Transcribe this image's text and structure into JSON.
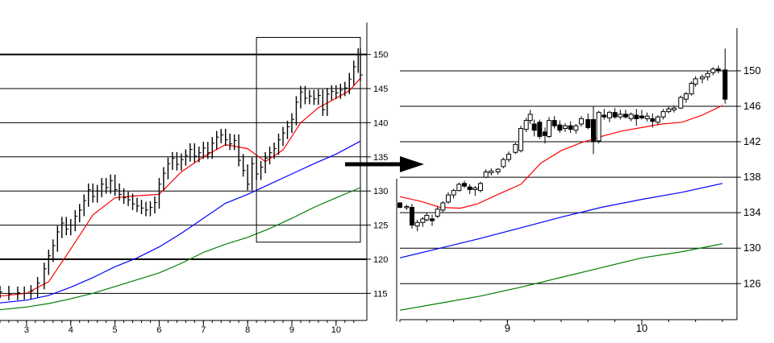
{
  "chart_data": [
    {
      "type": "candlestick",
      "name": "",
      "x_ticks": [
        "3",
        "4",
        "5",
        "6",
        "7",
        "8",
        "9",
        "10"
      ],
      "x_tick_values": [
        3,
        4,
        5,
        6,
        7,
        8,
        9,
        10
      ],
      "xlim": [
        2.4,
        10.55
      ],
      "y_ticks": [
        "115",
        "120",
        "125",
        "130",
        "135",
        "140",
        "145",
        "150"
      ],
      "y_tick_values": [
        115,
        120,
        125,
        130,
        135,
        140,
        145,
        150
      ],
      "ylim": [
        111.5,
        153.5
      ],
      "grid": true,
      "zoom_box": {
        "x": [
          8.2,
          10.55
        ],
        "y": [
          122.5,
          152.5
        ]
      },
      "close": [
        [
          2.4,
          115.2
        ],
        [
          2.6,
          114.9
        ],
        [
          2.8,
          115.1
        ],
        [
          2.95,
          115.0
        ],
        [
          3.1,
          115.3
        ],
        [
          3.25,
          116.5
        ],
        [
          3.4,
          118.6
        ],
        [
          3.5,
          120.5
        ],
        [
          3.6,
          122.0
        ],
        [
          3.7,
          124.0
        ],
        [
          3.8,
          125.3
        ],
        [
          3.9,
          124.4
        ],
        [
          4.0,
          125.0
        ],
        [
          4.1,
          126.3
        ],
        [
          4.2,
          127.2
        ],
        [
          4.3,
          128.6
        ],
        [
          4.4,
          130.2
        ],
        [
          4.5,
          129.2
        ],
        [
          4.6,
          130.0
        ],
        [
          4.7,
          131.0
        ],
        [
          4.8,
          130.5
        ],
        [
          4.9,
          131.5
        ],
        [
          5.0,
          130.2
        ],
        [
          5.1,
          129.5
        ],
        [
          5.2,
          129.0
        ],
        [
          5.3,
          128.7
        ],
        [
          5.4,
          128.1
        ],
        [
          5.5,
          127.8
        ],
        [
          5.6,
          127.5
        ],
        [
          5.7,
          127.2
        ],
        [
          5.8,
          127.6
        ],
        [
          5.9,
          128.3
        ],
        [
          6.0,
          131.0
        ],
        [
          6.1,
          132.6
        ],
        [
          6.2,
          134.0
        ],
        [
          6.3,
          134.8
        ],
        [
          6.4,
          133.9
        ],
        [
          6.5,
          134.6
        ],
        [
          6.6,
          135.2
        ],
        [
          6.7,
          136.1
        ],
        [
          6.8,
          135.1
        ],
        [
          6.9,
          135.6
        ],
        [
          7.0,
          136.3
        ],
        [
          7.1,
          135.6
        ],
        [
          7.2,
          137.0
        ],
        [
          7.3,
          137.9
        ],
        [
          7.4,
          138.2
        ],
        [
          7.5,
          137.5
        ],
        [
          7.6,
          136.9
        ],
        [
          7.7,
          137.4
        ],
        [
          7.8,
          134.5
        ],
        [
          7.9,
          133.0
        ],
        [
          8.0,
          131.0
        ],
        [
          8.1,
          134.0
        ],
        [
          8.2,
          132.5
        ],
        [
          8.3,
          133.5
        ],
        [
          8.4,
          134.8
        ],
        [
          8.5,
          135.6
        ],
        [
          8.6,
          136.2
        ],
        [
          8.7,
          137.5
        ],
        [
          8.8,
          138.5
        ],
        [
          8.9,
          139.4
        ],
        [
          9.0,
          140.5
        ],
        [
          9.1,
          143.0
        ],
        [
          9.2,
          144.5
        ],
        [
          9.3,
          143.6
        ],
        [
          9.4,
          143.9
        ],
        [
          9.5,
          143.5
        ],
        [
          9.6,
          144.0
        ],
        [
          9.7,
          141.9
        ],
        [
          9.8,
          144.2
        ],
        [
          9.9,
          144.6
        ],
        [
          10.0,
          144.4
        ],
        [
          10.1,
          144.8
        ],
        [
          10.2,
          145.1
        ],
        [
          10.3,
          146.4
        ],
        [
          10.4,
          148.2
        ],
        [
          10.5,
          150.0
        ],
        [
          10.55,
          147.0
        ]
      ],
      "series": [
        {
          "name": "",
          "color": "#ff0000",
          "values": [
            [
              2.4,
              114.6
            ],
            [
              3.0,
              115.0
            ],
            [
              3.5,
              116.7
            ],
            [
              4.0,
              121.5
            ],
            [
              4.5,
              126.5
            ],
            [
              5.0,
              129.0
            ],
            [
              5.5,
              129.3
            ],
            [
              6.0,
              129.5
            ],
            [
              6.5,
              132.8
            ],
            [
              7.0,
              135.0
            ],
            [
              7.5,
              136.8
            ],
            [
              8.0,
              136.2
            ],
            [
              8.4,
              134.3
            ],
            [
              8.8,
              136.0
            ],
            [
              9.2,
              140.0
            ],
            [
              9.6,
              142.2
            ],
            [
              10.0,
              143.6
            ],
            [
              10.3,
              144.7
            ],
            [
              10.55,
              146.5
            ]
          ]
        },
        {
          "name": "",
          "color": "#0000ff",
          "values": [
            [
              2.4,
              113.6
            ],
            [
              3.0,
              114.0
            ],
            [
              3.5,
              114.7
            ],
            [
              4.0,
              115.9
            ],
            [
              4.5,
              117.3
            ],
            [
              5.0,
              118.9
            ],
            [
              5.5,
              120.2
            ],
            [
              6.0,
              121.8
            ],
            [
              6.5,
              123.8
            ],
            [
              7.0,
              126.0
            ],
            [
              7.5,
              128.2
            ],
            [
              8.0,
              129.5
            ],
            [
              8.5,
              131.0
            ],
            [
              9.0,
              132.5
            ],
            [
              9.5,
              134.0
            ],
            [
              10.0,
              135.4
            ],
            [
              10.55,
              137.3
            ]
          ]
        },
        {
          "name": "",
          "color": "#008000",
          "values": [
            [
              2.4,
              112.6
            ],
            [
              3.0,
              113.0
            ],
            [
              3.5,
              113.5
            ],
            [
              4.0,
              114.2
            ],
            [
              4.5,
              115.0
            ],
            [
              5.0,
              116.0
            ],
            [
              5.5,
              117.0
            ],
            [
              6.0,
              118.0
            ],
            [
              6.5,
              119.4
            ],
            [
              7.0,
              121.0
            ],
            [
              7.5,
              122.2
            ],
            [
              8.0,
              123.2
            ],
            [
              8.5,
              124.5
            ],
            [
              9.0,
              126.0
            ],
            [
              9.5,
              127.6
            ],
            [
              10.0,
              129.0
            ],
            [
              10.55,
              130.5
            ]
          ]
        }
      ]
    },
    {
      "type": "candlestick",
      "name": "",
      "x_ticks": [
        "9",
        "10"
      ],
      "x_tick_values": [
        9,
        10
      ],
      "xlim": [
        8.2,
        10.66
      ],
      "y_ticks": [
        "126",
        "130",
        "134",
        "138",
        "142",
        "146",
        "150"
      ],
      "y_tick_values": [
        126,
        130,
        134,
        138,
        142,
        146,
        150
      ],
      "ylim": [
        122.3,
        153.9
      ],
      "grid": true,
      "ohlc": [
        [
          8.2,
          135.1,
          135.2,
          134.5,
          134.6
        ],
        [
          8.25,
          134.6,
          134.9,
          134.3,
          134.7
        ],
        [
          8.29,
          134.6,
          135.0,
          132.2,
          132.6
        ],
        [
          8.33,
          132.5,
          133.2,
          131.9,
          132.9
        ],
        [
          8.37,
          132.9,
          133.5,
          132.4,
          133.3
        ],
        [
          8.4,
          133.2,
          134.0,
          133.0,
          133.7
        ],
        [
          8.44,
          133.3,
          133.8,
          132.5,
          133.1
        ],
        [
          8.48,
          133.6,
          134.7,
          133.4,
          134.4
        ],
        [
          8.52,
          134.3,
          135.3,
          134.0,
          135.1
        ],
        [
          8.56,
          135.2,
          136.3,
          135.0,
          136.0
        ],
        [
          8.6,
          136.0,
          136.7,
          135.6,
          136.5
        ],
        [
          8.64,
          136.5,
          137.4,
          136.4,
          137.2
        ],
        [
          8.68,
          137.3,
          137.6,
          136.8,
          137.0
        ],
        [
          8.72,
          136.9,
          137.2,
          136.1,
          136.6
        ],
        [
          8.76,
          136.6,
          137.0,
          135.9,
          136.8
        ],
        [
          8.8,
          136.5,
          137.5,
          136.3,
          137.3
        ],
        [
          8.84,
          138.0,
          138.9,
          137.9,
          138.6
        ],
        [
          8.88,
          138.5,
          139.0,
          138.2,
          138.7
        ],
        [
          8.93,
          138.6,
          139.0,
          138.3,
          138.9
        ],
        [
          8.97,
          139.2,
          140.2,
          139.0,
          140.0
        ],
        [
          9.01,
          140.0,
          140.9,
          139.7,
          140.6
        ],
        [
          9.06,
          140.8,
          141.9,
          140.6,
          141.7
        ],
        [
          9.1,
          141.0,
          143.8,
          140.8,
          143.5
        ],
        [
          9.14,
          143.4,
          144.7,
          143.1,
          144.4
        ],
        [
          9.17,
          144.4,
          145.6,
          144.0,
          145.1
        ],
        [
          9.2,
          144.0,
          144.5,
          142.6,
          143.3
        ],
        [
          9.24,
          144.2,
          144.5,
          142.3,
          142.6
        ],
        [
          9.28,
          143.1,
          143.6,
          141.8,
          142.7
        ],
        [
          9.31,
          142.6,
          144.8,
          142.4,
          144.4
        ],
        [
          9.35,
          144.4,
          144.9,
          143.5,
          143.8
        ],
        [
          9.39,
          143.9,
          144.4,
          143.0,
          143.3
        ],
        [
          9.43,
          143.5,
          144.1,
          143.1,
          143.8
        ],
        [
          9.47,
          143.8,
          144.3,
          143.0,
          143.4
        ],
        [
          9.51,
          143.3,
          144.0,
          142.9,
          143.8
        ],
        [
          9.55,
          144.0,
          144.9,
          143.7,
          144.6
        ],
        [
          9.6,
          144.5,
          145.2,
          143.4,
          143.6
        ],
        [
          9.64,
          144.5,
          146.0,
          140.6,
          142.0
        ],
        [
          9.68,
          142.1,
          145.5,
          141.8,
          145.3
        ],
        [
          9.72,
          145.0,
          145.7,
          144.5,
          144.8
        ],
        [
          9.76,
          144.7,
          145.5,
          144.2,
          145.3
        ],
        [
          9.8,
          145.3,
          145.8,
          144.6,
          144.8
        ],
        [
          9.84,
          144.8,
          145.6,
          144.5,
          145.1
        ],
        [
          9.88,
          145.1,
          145.6,
          144.6,
          144.8
        ],
        [
          9.92,
          144.6,
          145.3,
          144.3,
          145.1
        ],
        [
          9.96,
          145.0,
          145.7,
          143.8,
          144.6
        ],
        [
          10.0,
          144.9,
          145.6,
          144.5,
          144.7
        ],
        [
          10.04,
          144.6,
          145.3,
          144.3,
          144.9
        ],
        [
          10.08,
          144.6,
          145.2,
          143.6,
          144.3
        ],
        [
          10.12,
          144.2,
          145.0,
          143.9,
          144.8
        ],
        [
          10.16,
          144.8,
          145.7,
          144.5,
          145.4
        ],
        [
          10.2,
          145.4,
          146.0,
          145.2,
          145.7
        ],
        [
          10.24,
          145.6,
          146.1,
          145.3,
          145.8
        ],
        [
          10.29,
          145.8,
          147.2,
          145.7,
          147.0
        ],
        [
          10.33,
          146.8,
          147.6,
          146.4,
          147.4
        ],
        [
          10.37,
          147.4,
          148.8,
          147.2,
          148.6
        ],
        [
          10.4,
          148.5,
          149.4,
          148.2,
          149.1
        ],
        [
          10.45,
          149.1,
          149.6,
          148.6,
          149.3
        ],
        [
          10.49,
          149.3,
          150.0,
          148.9,
          149.7
        ],
        [
          10.53,
          149.8,
          150.4,
          149.5,
          150.2
        ],
        [
          10.57,
          150.2,
          150.6,
          149.7,
          150.0
        ],
        [
          10.62,
          150.1,
          152.5,
          146.3,
          146.8
        ]
      ],
      "series": [
        {
          "name": "",
          "color": "#ff0000",
          "values": [
            [
              8.2,
              135.8
            ],
            [
              8.35,
              135.3
            ],
            [
              8.5,
              134.6
            ],
            [
              8.65,
              134.5
            ],
            [
              8.78,
              135.0
            ],
            [
              8.95,
              136.2
            ],
            [
              9.1,
              137.2
            ],
            [
              9.25,
              139.6
            ],
            [
              9.4,
              141.0
            ],
            [
              9.55,
              141.9
            ],
            [
              9.7,
              142.6
            ],
            [
              9.85,
              143.2
            ],
            [
              10.0,
              143.6
            ],
            [
              10.15,
              144.0
            ],
            [
              10.3,
              144.2
            ],
            [
              10.45,
              145.0
            ],
            [
              10.6,
              146.1
            ]
          ]
        },
        {
          "name": "",
          "color": "#0000ff",
          "values": [
            [
              8.2,
              128.9
            ],
            [
              8.5,
              130.0
            ],
            [
              8.8,
              131.1
            ],
            [
              9.1,
              132.3
            ],
            [
              9.4,
              133.5
            ],
            [
              9.7,
              134.6
            ],
            [
              10.0,
              135.5
            ],
            [
              10.3,
              136.3
            ],
            [
              10.6,
              137.3
            ]
          ]
        },
        {
          "name": "",
          "color": "#008000",
          "values": [
            [
              8.2,
              123.0
            ],
            [
              8.5,
              123.8
            ],
            [
              8.8,
              124.6
            ],
            [
              9.1,
              125.6
            ],
            [
              9.4,
              126.7
            ],
            [
              9.7,
              127.8
            ],
            [
              10.0,
              128.9
            ],
            [
              10.3,
              129.6
            ],
            [
              10.6,
              130.5
            ]
          ]
        }
      ]
    }
  ]
}
